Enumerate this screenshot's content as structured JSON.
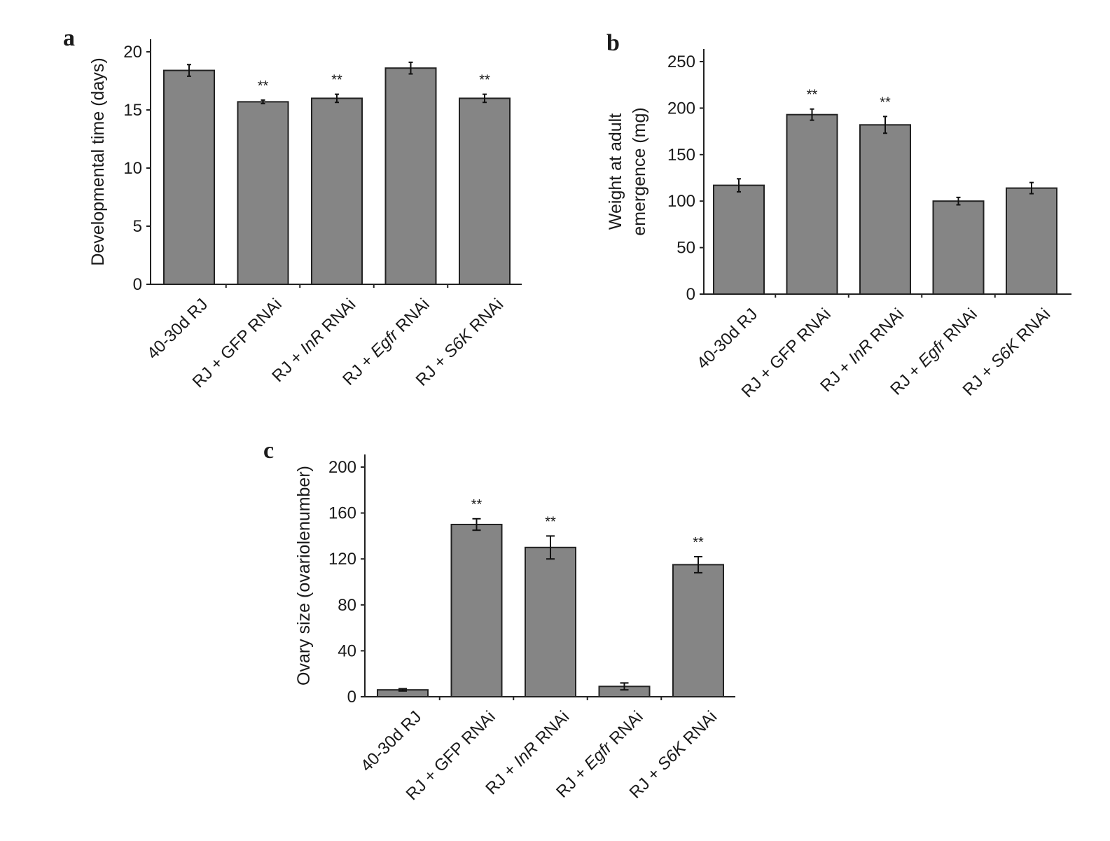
{
  "colors": {
    "bar_fill": "#858585",
    "bar_stroke": "#222222",
    "axis": "#222222"
  },
  "chart_data": [
    {
      "type": "bar",
      "panel_label": "a",
      "ylabel": "Developmental time (days)",
      "ylim": [
        0,
        22
      ],
      "yticks": [
        0,
        5,
        10,
        15,
        20
      ],
      "categories": [
        [
          {
            "t": "40-30d RJ"
          }
        ],
        [
          {
            "t": "RJ + GFP RNAi"
          }
        ],
        [
          {
            "t": "RJ + "
          },
          {
            "t": "InR",
            "i": true
          },
          {
            "t": " RNAi"
          }
        ],
        [
          {
            "t": "RJ + "
          },
          {
            "t": "Egfr",
            "i": true
          },
          {
            "t": " RNAi"
          }
        ],
        [
          {
            "t": "RJ + "
          },
          {
            "t": "S6K",
            "i": true
          },
          {
            "t": " RNAi"
          }
        ]
      ],
      "values": [
        18.4,
        15.7,
        16.0,
        18.6,
        16.0
      ],
      "errors": [
        0.5,
        0.15,
        0.35,
        0.5,
        0.35
      ],
      "annotations": [
        "",
        "**",
        "**",
        "",
        "**"
      ]
    },
    {
      "type": "bar",
      "panel_label": "b",
      "ylabel": [
        "Weight at adult",
        "emergence (mg)"
      ],
      "ylim": [
        0,
        250
      ],
      "yticks": [
        0,
        50,
        100,
        150,
        200,
        250
      ],
      "categories": [
        [
          {
            "t": "40-30d RJ"
          }
        ],
        [
          {
            "t": "RJ + GFP RNAi"
          }
        ],
        [
          {
            "t": "RJ + "
          },
          {
            "t": "InR",
            "i": true
          },
          {
            "t": " RNAi"
          }
        ],
        [
          {
            "t": "RJ + "
          },
          {
            "t": "Egfr",
            "i": true
          },
          {
            "t": " RNAi"
          }
        ],
        [
          {
            "t": "RJ + "
          },
          {
            "t": "S6K",
            "i": true
          },
          {
            "t": " RNAi"
          }
        ]
      ],
      "values": [
        117,
        193,
        182,
        100,
        114
      ],
      "errors": [
        7,
        6,
        9,
        4,
        6
      ],
      "annotations": [
        "",
        "**",
        "**",
        "",
        ""
      ]
    },
    {
      "type": "bar",
      "panel_label": "c",
      "ylabel": "Ovary size (ovariolenumber)",
      "ylim": [
        0,
        200
      ],
      "yticks": [
        0,
        40,
        80,
        120,
        160,
        200
      ],
      "categories": [
        [
          {
            "t": "40-30d RJ"
          }
        ],
        [
          {
            "t": "RJ + GFP RNAi"
          }
        ],
        [
          {
            "t": "RJ + "
          },
          {
            "t": "InR",
            "i": true
          },
          {
            "t": " RNAi"
          }
        ],
        [
          {
            "t": "RJ + "
          },
          {
            "t": "Egfr",
            "i": true
          },
          {
            "t": " RNAi"
          }
        ],
        [
          {
            "t": "RJ + "
          },
          {
            "t": "S6K",
            "i": true
          },
          {
            "t": " RNAi"
          }
        ]
      ],
      "values": [
        6,
        150,
        130,
        9,
        115
      ],
      "errors": [
        1,
        5,
        10,
        3,
        7
      ],
      "annotations": [
        "",
        "**",
        "**",
        "",
        "**"
      ]
    }
  ]
}
